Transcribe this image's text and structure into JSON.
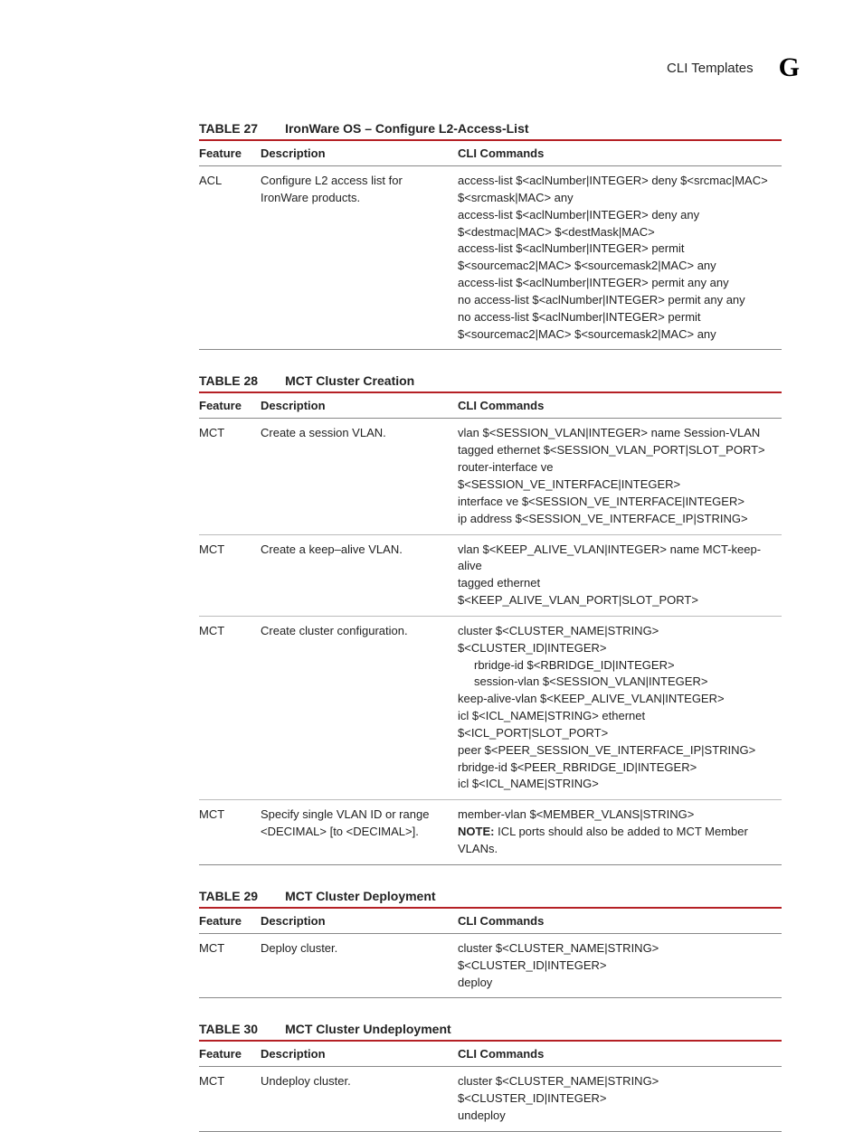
{
  "header": {
    "section": "CLI Templates",
    "appendix_letter": "G"
  },
  "columns": {
    "feature": "Feature",
    "description": "Description",
    "cli": "CLI Commands"
  },
  "tables": {
    "t27": {
      "num": "TABLE 27",
      "title": "IronWare OS – Configure L2-Access-List",
      "rows": [
        {
          "feature": "ACL",
          "description": "Configure L2 access list for IronWare products.",
          "cli": [
            "access-list $<aclNumber|INTEGER> deny $<srcmac|MAC> $<srcmask|MAC> any",
            "access-list $<aclNumber|INTEGER> deny any $<destmac|MAC> $<destMask|MAC>",
            "access-list $<aclNumber|INTEGER> permit $<sourcemac2|MAC> $<sourcemask2|MAC> any",
            "access-list $<aclNumber|INTEGER> permit any any",
            "no access-list $<aclNumber|INTEGER> permit any any",
            "no access-list $<aclNumber|INTEGER> permit $<sourcemac2|MAC> $<sourcemask2|MAC> any"
          ]
        }
      ]
    },
    "t28": {
      "num": "TABLE 28",
      "title": "MCT Cluster Creation",
      "rows": [
        {
          "feature": "MCT",
          "description": "Create a session VLAN.",
          "cli": [
            "vlan $<SESSION_VLAN|INTEGER> name Session-VLAN",
            "tagged ethernet $<SESSION_VLAN_PORT|SLOT_PORT>",
            "router-interface ve $<SESSION_VE_INTERFACE|INTEGER>",
            "interface ve $<SESSION_VE_INTERFACE|INTEGER>",
            "ip address $<SESSION_VE_INTERFACE_IP|STRING>"
          ]
        },
        {
          "feature": "MCT",
          "description": "Create a keep–alive VLAN.",
          "cli": [
            "vlan $<KEEP_ALIVE_VLAN|INTEGER> name MCT-keep-alive",
            "tagged ethernet $<KEEP_ALIVE_VLAN_PORT|SLOT_PORT>"
          ]
        },
        {
          "feature": "MCT",
          "description": "Create cluster configuration.",
          "cli_rich": [
            {
              "text": "cluster $<CLUSTER_NAME|STRING> $<CLUSTER_ID|INTEGER>",
              "indent": false
            },
            {
              "text": "rbridge-id $<RBRIDGE_ID|INTEGER>",
              "indent": true
            },
            {
              "text": "session-vlan $<SESSION_VLAN|INTEGER>",
              "indent": true
            },
            {
              "text": "keep-alive-vlan $<KEEP_ALIVE_VLAN|INTEGER>",
              "indent": false
            },
            {
              "text": "icl $<ICL_NAME|STRING> ethernet $<ICL_PORT|SLOT_PORT>",
              "indent": false
            },
            {
              "text": "peer $<PEER_SESSION_VE_INTERFACE_IP|STRING>",
              "indent": false
            },
            {
              "text": "rbridge-id $<PEER_RBRIDGE_ID|INTEGER>",
              "indent": false
            },
            {
              "text": "icl $<ICL_NAME|STRING>",
              "indent": false
            }
          ]
        },
        {
          "feature": "MCT",
          "description": "Specify single VLAN ID or range <DECIMAL> [to <DECIMAL>].",
          "cli": [
            "member-vlan $<MEMBER_VLANS|STRING>"
          ],
          "note_label": "NOTE:",
          "note": "ICL ports should also be added to MCT Member VLANs."
        }
      ]
    },
    "t29": {
      "num": "TABLE 29",
      "title": "MCT Cluster Deployment",
      "rows": [
        {
          "feature": "MCT",
          "description": "Deploy cluster.",
          "cli": [
            "cluster $<CLUSTER_NAME|STRING> $<CLUSTER_ID|INTEGER>",
            "deploy"
          ]
        }
      ]
    },
    "t30": {
      "num": "TABLE 30",
      "title": "MCT Cluster Undeployment",
      "rows": [
        {
          "feature": "MCT",
          "description": "Undeploy cluster.",
          "cli": [
            "cluster $<CLUSTER_NAME|STRING> $<CLUSTER_ID|INTEGER>",
            "undeploy"
          ]
        }
      ]
    }
  }
}
